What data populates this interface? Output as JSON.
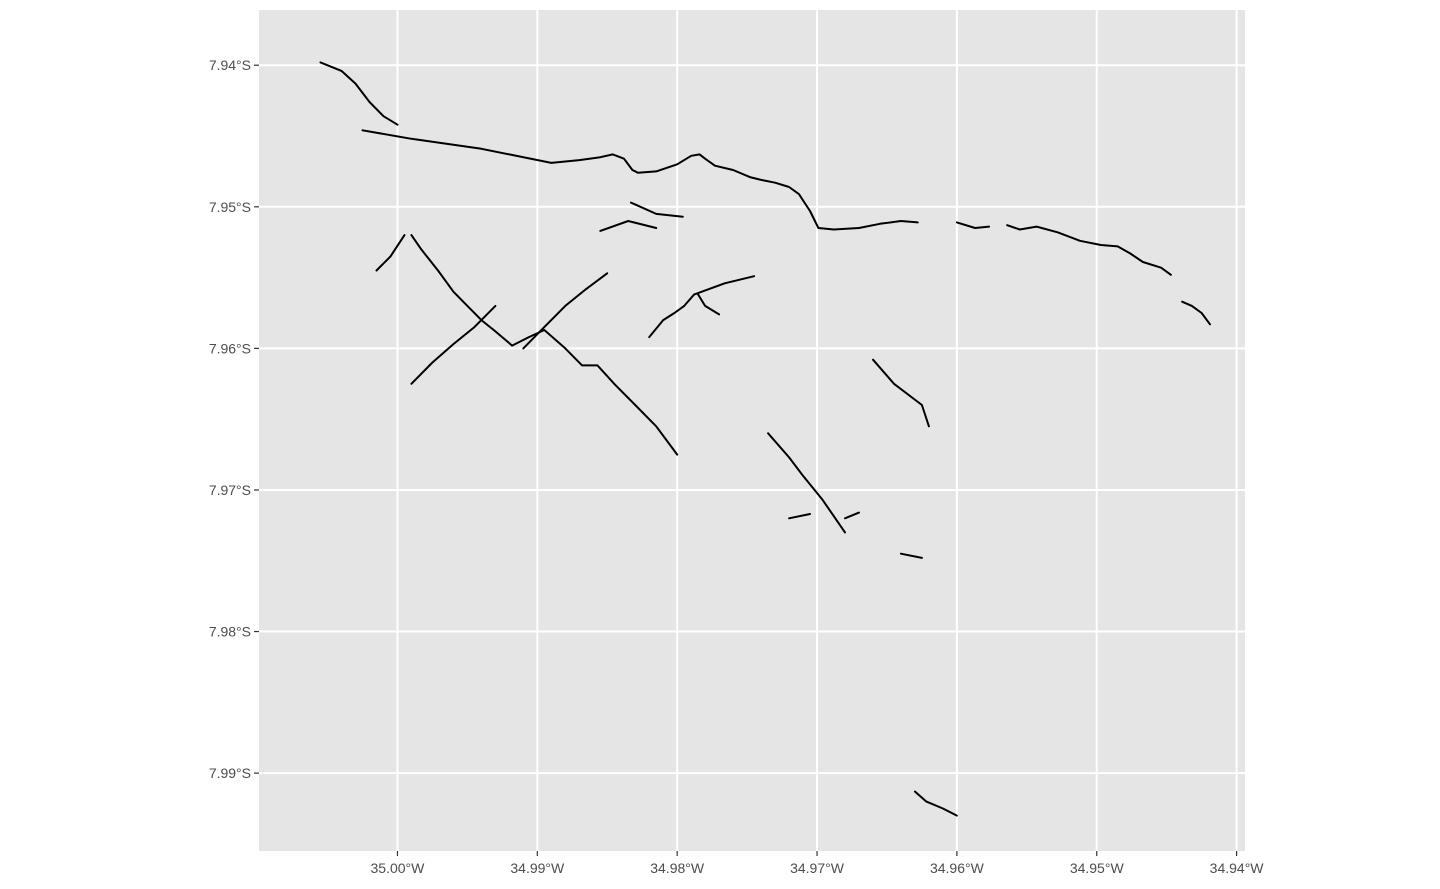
{
  "map": {
    "panel_background": "#e5e5e5",
    "grid_color": "#ffffff",
    "road_color": "#000000",
    "x_ticks": [
      {
        "value": -35.0,
        "label": "35.00°W"
      },
      {
        "value": -34.99,
        "label": "34.99°W"
      },
      {
        "value": -34.98,
        "label": "34.98°W"
      },
      {
        "value": -34.97,
        "label": "34.97°W"
      },
      {
        "value": -34.96,
        "label": "34.96°W"
      },
      {
        "value": -34.95,
        "label": "34.95°W"
      },
      {
        "value": -34.94,
        "label": "34.94°W"
      }
    ],
    "y_ticks": [
      {
        "value": -7.94,
        "label": "7.94°S"
      },
      {
        "value": -7.95,
        "label": "7.95°S"
      },
      {
        "value": -7.96,
        "label": "7.96°S"
      },
      {
        "value": -7.97,
        "label": "7.97°S"
      },
      {
        "value": -7.98,
        "label": "7.98°S"
      },
      {
        "value": -7.99,
        "label": "7.99°S"
      }
    ],
    "xlim": [
      -35.0099,
      -34.9394
    ],
    "ylim": [
      -7.9955,
      -7.9361
    ],
    "roads": [
      [
        [
          -35.0025,
          -7.9446
        ],
        [
          -34.999,
          -7.9452
        ],
        [
          -34.994,
          -7.9459
        ],
        [
          -34.992,
          -7.9463
        ],
        [
          -34.989,
          -7.9469
        ],
        [
          -34.987,
          -7.9467
        ],
        [
          -34.9855,
          -7.9465
        ],
        [
          -34.9846,
          -7.9463
        ],
        [
          -34.9838,
          -7.9466
        ],
        [
          -34.9832,
          -7.9474
        ],
        [
          -34.9828,
          -7.9476
        ],
        [
          -34.9815,
          -7.9475
        ],
        [
          -34.98,
          -7.947
        ],
        [
          -34.979,
          -7.9464
        ],
        [
          -34.9784,
          -7.9463
        ],
        [
          -34.978,
          -7.9466
        ],
        [
          -34.9773,
          -7.9471
        ],
        [
          -34.976,
          -7.9474
        ],
        [
          -34.9748,
          -7.9479
        ],
        [
          -34.974,
          -7.9481
        ],
        [
          -34.973,
          -7.9483
        ],
        [
          -34.972,
          -7.9486
        ],
        [
          -34.9713,
          -7.9491
        ],
        [
          -34.9705,
          -7.9503
        ],
        [
          -34.9699,
          -7.9515
        ],
        [
          -34.9688,
          -7.9516
        ],
        [
          -34.967,
          -7.9515
        ],
        [
          -34.9655,
          -7.9512
        ],
        [
          -34.964,
          -7.951
        ],
        [
          -34.9628,
          -7.9511
        ]
      ],
      [
        [
          -34.96,
          -7.9511
        ],
        [
          -34.9587,
          -7.9515
        ],
        [
          -34.9577,
          -7.9514
        ]
      ],
      [
        [
          -34.9564,
          -7.9513
        ],
        [
          -34.9555,
          -7.9516
        ],
        [
          -34.9543,
          -7.9514
        ],
        [
          -34.9528,
          -7.9518
        ],
        [
          -34.9512,
          -7.9524
        ],
        [
          -34.9497,
          -7.9527
        ],
        [
          -34.9485,
          -7.9528
        ],
        [
          -34.9476,
          -7.9533
        ],
        [
          -34.9467,
          -7.9539
        ],
        [
          -34.9454,
          -7.9543
        ],
        [
          -34.9447,
          -7.9548
        ]
      ],
      [
        [
          -34.9439,
          -7.9567
        ],
        [
          -34.9432,
          -7.957
        ],
        [
          -34.9425,
          -7.9575
        ],
        [
          -34.9419,
          -7.9583
        ]
      ],
      [
        [
          -35.0055,
          -7.9398
        ],
        [
          -35.004,
          -7.9404
        ],
        [
          -35.003,
          -7.9413
        ],
        [
          -35.002,
          -7.9426
        ],
        [
          -35.001,
          -7.9436
        ],
        [
          -35.0,
          -7.9442
        ]
      ],
      [
        [
          -34.999,
          -7.952
        ],
        [
          -34.9983,
          -7.953
        ],
        [
          -34.9971,
          -7.9545
        ],
        [
          -34.996,
          -7.956
        ],
        [
          -34.995,
          -7.957
        ],
        [
          -34.994,
          -7.958
        ],
        [
          -34.993,
          -7.9588
        ],
        [
          -34.9918,
          -7.9598
        ],
        [
          -34.9906,
          -7.9592
        ],
        [
          -34.9895,
          -7.9587
        ],
        [
          -34.988,
          -7.96
        ],
        [
          -34.9868,
          -7.9612
        ],
        [
          -34.9857,
          -7.9612
        ],
        [
          -34.9845,
          -7.9625
        ],
        [
          -34.983,
          -7.964
        ],
        [
          -34.9815,
          -7.9655
        ],
        [
          -34.98,
          -7.9675
        ]
      ],
      [
        [
          -35.0015,
          -7.9545
        ],
        [
          -35.0005,
          -7.9535
        ],
        [
          -34.9995,
          -7.952
        ]
      ],
      [
        [
          -34.999,
          -7.9625
        ],
        [
          -34.9975,
          -7.961
        ],
        [
          -34.996,
          -7.9597
        ],
        [
          -34.9945,
          -7.9585
        ],
        [
          -34.993,
          -7.957
        ]
      ],
      [
        [
          -34.991,
          -7.96
        ],
        [
          -34.9895,
          -7.9585
        ],
        [
          -34.988,
          -7.957
        ],
        [
          -34.9865,
          -7.9558
        ],
        [
          -34.985,
          -7.9547
        ]
      ],
      [
        [
          -34.982,
          -7.9592
        ],
        [
          -34.981,
          -7.958
        ],
        [
          -34.9802,
          -7.9575
        ],
        [
          -34.9795,
          -7.957
        ],
        [
          -34.9788,
          -7.9562
        ],
        [
          -34.9766,
          -7.9554
        ],
        [
          -34.9745,
          -7.9549
        ]
      ],
      [
        [
          -34.9785,
          -7.9562
        ],
        [
          -34.978,
          -7.957
        ],
        [
          -34.977,
          -7.9576
        ]
      ],
      [
        [
          -34.9735,
          -7.966
        ],
        [
          -34.972,
          -7.9677
        ],
        [
          -34.971,
          -7.969
        ],
        [
          -34.9696,
          -7.9707
        ],
        [
          -34.968,
          -7.973
        ]
      ],
      [
        [
          -34.966,
          -7.9608
        ],
        [
          -34.9645,
          -7.9625
        ],
        [
          -34.9625,
          -7.964
        ],
        [
          -34.962,
          -7.9655
        ]
      ],
      [
        [
          -34.963,
          -7.9913
        ],
        [
          -34.9622,
          -7.992
        ],
        [
          -34.961,
          -7.9925
        ],
        [
          -34.96,
          -7.993
        ]
      ],
      [
        [
          -34.972,
          -7.972
        ],
        [
          -34.9705,
          -7.9717
        ]
      ],
      [
        [
          -34.968,
          -7.972
        ],
        [
          -34.967,
          -7.9716
        ]
      ],
      [
        [
          -34.964,
          -7.9745
        ],
        [
          -34.9625,
          -7.9748
        ]
      ],
      [
        [
          -34.9855,
          -7.9517
        ],
        [
          -34.9835,
          -7.951
        ],
        [
          -34.9815,
          -7.9515
        ]
      ],
      [
        [
          -34.9833,
          -7.9497
        ],
        [
          -34.9815,
          -7.9505
        ],
        [
          -34.9796,
          -7.9507
        ]
      ]
    ]
  }
}
